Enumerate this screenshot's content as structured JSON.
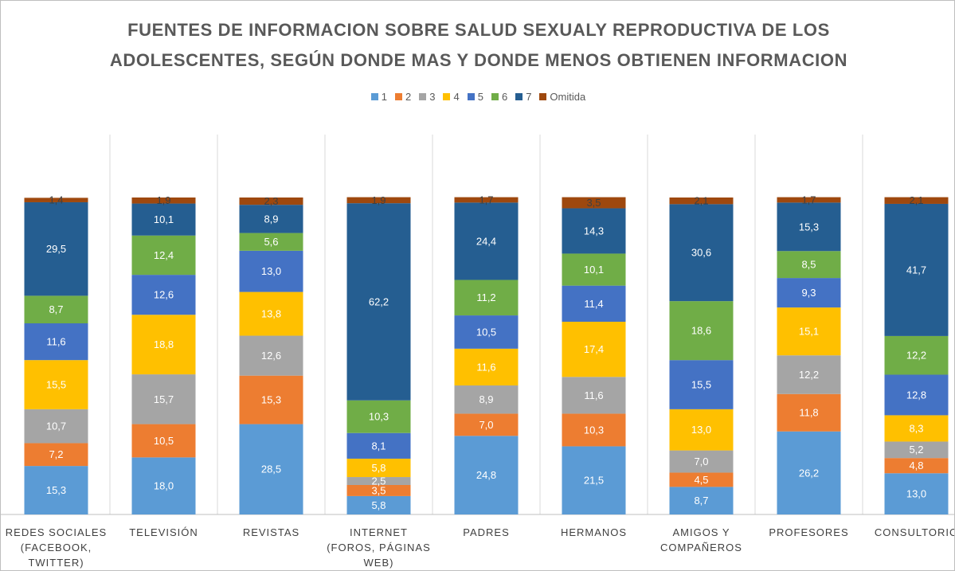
{
  "chart_data": {
    "type": "stacked_bar",
    "title": "FUENTES DE INFORMACION SOBRE SALUD SEXUALY REPRODUCTIVA DE LOS ADOLESCENTES, SEGÚN DONDE MAS Y DONDE MENOS OBTIENEN INFORMACION",
    "categories": [
      "REDES SOCIALES (FACEBOOK, TWITTER)",
      "TELEVISIÓN",
      "REVISTAS",
      "INTERNET (FOROS, PÁGINAS WEB)",
      "PADRES",
      "HERMANOS",
      "AMIGOS Y COMPAÑEROS",
      "PROFESORES",
      "CONSULTORIO"
    ],
    "ylim": [
      0,
      100
    ],
    "series": [
      {
        "name": "1",
        "color": "#5b9bd5",
        "values": [
          15.3,
          18.0,
          28.5,
          5.8,
          24.8,
          21.5,
          8.7,
          26.2,
          13.0
        ],
        "value_labels": [
          "15,3",
          "18,0",
          "28,5",
          "5,8",
          "24,8",
          "21,5",
          "8,7",
          "26,2",
          "13,0"
        ]
      },
      {
        "name": "2",
        "color": "#ed7d31",
        "values": [
          7.2,
          10.5,
          15.3,
          3.5,
          7.0,
          10.3,
          4.5,
          11.8,
          4.8
        ],
        "value_labels": [
          "7,2",
          "10,5",
          "15,3",
          "3,5",
          "7,0",
          "10,3",
          "4,5",
          "11,8",
          "4,8"
        ]
      },
      {
        "name": "3",
        "color": "#a5a5a5",
        "values": [
          10.7,
          15.7,
          12.6,
          2.5,
          8.9,
          11.6,
          7.0,
          12.2,
          5.2
        ],
        "value_labels": [
          "10,7",
          "15,7",
          "12,6",
          "2,5",
          "8,9",
          "11,6",
          "7,0",
          "12,2",
          "5,2"
        ]
      },
      {
        "name": "4",
        "color": "#ffc000",
        "values": [
          15.5,
          18.8,
          13.8,
          5.8,
          11.6,
          17.4,
          13.0,
          15.1,
          8.3
        ],
        "value_labels": [
          "15,5",
          "18,8",
          "13,8",
          "5,8",
          "11,6",
          "17,4",
          "13,0",
          "15,1",
          "8,3"
        ]
      },
      {
        "name": "5",
        "color": "#4472c4",
        "values": [
          11.6,
          12.6,
          13.0,
          8.1,
          10.5,
          11.4,
          15.5,
          9.3,
          12.8
        ],
        "value_labels": [
          "11,6",
          "12,6",
          "13,0",
          "8,1",
          "10,5",
          "11,4",
          "15,5",
          "9,3",
          "12,8"
        ]
      },
      {
        "name": "6",
        "color": "#70ad47",
        "values": [
          8.7,
          12.4,
          5.6,
          10.3,
          11.2,
          10.1,
          18.6,
          8.5,
          12.2
        ],
        "value_labels": [
          "8,7",
          "12,4",
          "5,6",
          "10,3",
          "11,2",
          "10,1",
          "18,6",
          "8,5",
          "12,2"
        ]
      },
      {
        "name": "7",
        "color": "#255e91",
        "values": [
          29.5,
          10.1,
          8.9,
          62.2,
          24.4,
          14.3,
          30.6,
          15.3,
          41.7
        ],
        "value_labels": [
          "29,5",
          "10,1",
          "8,9",
          "62,2",
          "24,4",
          "14,3",
          "30,6",
          "15,3",
          "41,7"
        ]
      },
      {
        "name": "Omitida",
        "color": "#9e480e",
        "values": [
          1.4,
          1.9,
          2.3,
          1.9,
          1.7,
          3.5,
          2.1,
          1.7,
          2.1
        ],
        "value_labels": [
          "1,4",
          "1,9",
          "2,3",
          "1,9",
          "1,7",
          "3,5",
          "2,1",
          "1,7",
          "2,1"
        ]
      }
    ]
  }
}
